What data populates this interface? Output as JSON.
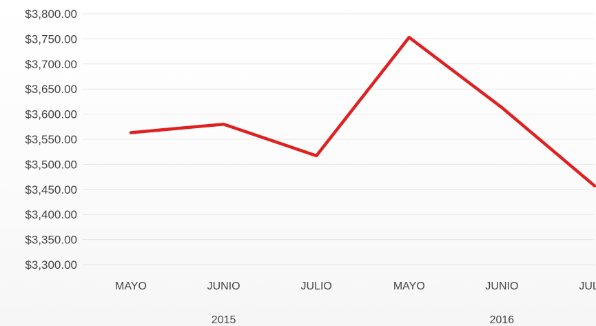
{
  "chart_data": {
    "type": "line",
    "title": "",
    "xlabel": "",
    "ylabel": "",
    "categories": [
      "MAYO",
      "JUNIO",
      "JULIO",
      "MAYO",
      "JUNIO",
      "JULIO"
    ],
    "category_groups": [
      {
        "label": "2015",
        "categories": [
          0,
          1,
          2
        ]
      },
      {
        "label": "2016",
        "categories": [
          3,
          4,
          5
        ]
      }
    ],
    "series": [
      {
        "values": [
          3563,
          3580,
          3517,
          3753,
          3613,
          3457
        ],
        "color": "#e02020"
      }
    ],
    "ylim": [
      3300,
      3800
    ],
    "ytick_step": 50,
    "ytick_format": "currency-2dp",
    "grid": true,
    "legend": "none"
  }
}
